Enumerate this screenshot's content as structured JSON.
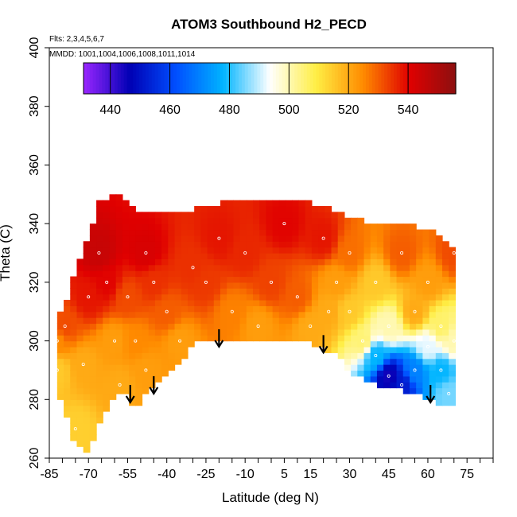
{
  "chart_data": {
    "type": "heatmap",
    "title": "ATOM3 Southbound H2_PECD",
    "subtitle_flights": "Flts: 2,3,4,5,6,7",
    "subtitle_dates": "MMDD: 1001,1004,1006,1008,1011,1014",
    "xlabel": "Latitude (deg N)",
    "ylabel": "Theta (C)",
    "xlim": [
      -85,
      85
    ],
    "ylim": [
      260,
      400
    ],
    "x_ticks_minor_step": 5,
    "x_tick_labels": [
      -85,
      -70,
      -55,
      -40,
      -25,
      -10,
      5,
      15,
      30,
      45,
      60,
      75
    ],
    "y_ticks": [
      260,
      280,
      300,
      320,
      340,
      360,
      380,
      400
    ],
    "grid": false,
    "colorbar": {
      "range": [
        431,
        556
      ],
      "ticks": [
        440,
        460,
        480,
        500,
        520,
        540
      ],
      "colors": [
        "#9a26ff",
        "#0000b4",
        "#0050ff",
        "#00b4ff",
        "#ffffff",
        "#ffee44",
        "#ff8c00",
        "#e00000",
        "#8c1010"
      ]
    },
    "arrows_lat": [
      -54,
      -45,
      -20,
      20,
      61
    ],
    "arrow_tip_theta": [
      279,
      282,
      298,
      296,
      279
    ],
    "series": [
      {
        "x": -82,
        "values": [
          290,
          296,
          309
        ],
        "role": "column_lat_theta_low_mid_top"
      }
    ],
    "column_cells": [
      [
        -82,
        284,
        308
      ],
      [
        -79,
        275,
        312
      ],
      [
        -75,
        265,
        325
      ],
      [
        -70,
        262,
        335
      ],
      [
        -66,
        272,
        348
      ],
      [
        -60,
        282,
        350
      ],
      [
        -56,
        282,
        348
      ],
      [
        -52,
        276,
        345
      ],
      [
        -48,
        282,
        343
      ],
      [
        -42,
        287,
        343
      ],
      [
        -36,
        292,
        344
      ],
      [
        -30,
        298,
        345
      ],
      [
        -25,
        301,
        346
      ],
      [
        -20,
        299,
        347
      ],
      [
        -15,
        300,
        347
      ],
      [
        -10,
        300,
        347
      ],
      [
        -5,
        300,
        347
      ],
      [
        0,
        300,
        347
      ],
      [
        5,
        300,
        347
      ],
      [
        10,
        300,
        347
      ],
      [
        15,
        299,
        347
      ],
      [
        20,
        297,
        346
      ],
      [
        25,
        295,
        344
      ],
      [
        30,
        290,
        342
      ],
      [
        35,
        287,
        341
      ],
      [
        40,
        285,
        340
      ],
      [
        45,
        284,
        340
      ],
      [
        50,
        283,
        340
      ],
      [
        55,
        282,
        339
      ],
      [
        60,
        280,
        338
      ],
      [
        65,
        278,
        336
      ],
      [
        70,
        278,
        332
      ]
    ],
    "value_samples": [
      [
        -82,
        290,
        515
      ],
      [
        -82,
        300,
        525
      ],
      [
        -79,
        305,
        532
      ],
      [
        -75,
        270,
        514
      ],
      [
        -72,
        292,
        520
      ],
      [
        -70,
        315,
        538
      ],
      [
        -66,
        330,
        545
      ],
      [
        -63,
        320,
        540
      ],
      [
        -60,
        300,
        522
      ],
      [
        -58,
        285,
        520
      ],
      [
        -55,
        315,
        532
      ],
      [
        -52,
        300,
        525
      ],
      [
        -48,
        330,
        542
      ],
      [
        -48,
        290,
        522
      ],
      [
        -45,
        320,
        535
      ],
      [
        -40,
        310,
        530
      ],
      [
        -35,
        300,
        522
      ],
      [
        -30,
        325,
        535
      ],
      [
        -25,
        320,
        534
      ],
      [
        -20,
        335,
        538
      ],
      [
        -15,
        310,
        526
      ],
      [
        -10,
        330,
        536
      ],
      [
        -5,
        305,
        522
      ],
      [
        0,
        320,
        533
      ],
      [
        5,
        340,
        540
      ],
      [
        10,
        315,
        530
      ],
      [
        15,
        305,
        520
      ],
      [
        20,
        335,
        538
      ],
      [
        22,
        310,
        520
      ],
      [
        25,
        320,
        522
      ],
      [
        30,
        310,
        515
      ],
      [
        30,
        330,
        528
      ],
      [
        35,
        300,
        505
      ],
      [
        40,
        295,
        478
      ],
      [
        40,
        320,
        515
      ],
      [
        45,
        288,
        445
      ],
      [
        45,
        305,
        500
      ],
      [
        50,
        285,
        452
      ],
      [
        50,
        330,
        530
      ],
      [
        55,
        290,
        470
      ],
      [
        55,
        310,
        520
      ],
      [
        60,
        298,
        492
      ],
      [
        60,
        320,
        522
      ],
      [
        65,
        290,
        478
      ],
      [
        65,
        305,
        506
      ],
      [
        68,
        282,
        485
      ],
      [
        70,
        330,
        532
      ],
      [
        70,
        300,
        500
      ]
    ]
  }
}
